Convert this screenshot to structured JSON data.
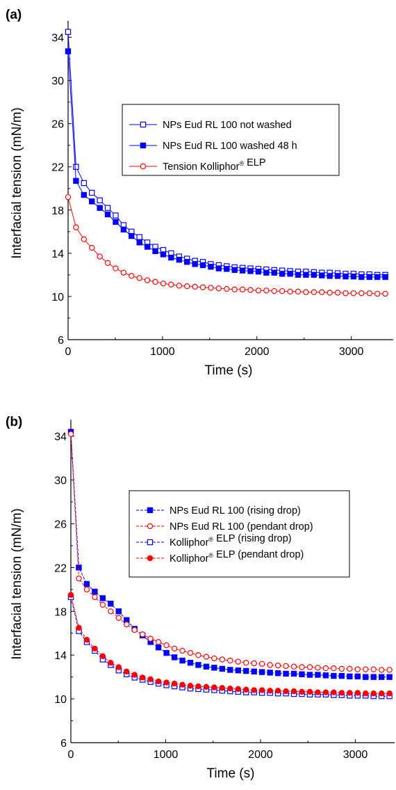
{
  "chart_data": [
    {
      "type": "line",
      "panel_label": "(a)",
      "xlabel": "Time (s)",
      "ylabel": "Interfacial tension (mN/m)",
      "xlim": [
        0,
        3400
      ],
      "ylim": [
        6,
        35
      ],
      "xticks": [
        0,
        1000,
        2000,
        3000
      ],
      "yticks": [
        6,
        10,
        14,
        18,
        22,
        26,
        30,
        34
      ],
      "grid": false,
      "legend_placement": "right-center",
      "series": [
        {
          "name": "NPs Eud RL 100 not washed",
          "color": "#0000ff",
          "marker": "square-open",
          "line": "solid",
          "x": [
            0,
            84,
            168,
            252,
            336,
            420,
            504,
            588,
            672,
            756,
            840,
            924,
            1008,
            1092,
            1176,
            1260,
            1344,
            1428,
            1512,
            1596,
            1680,
            1764,
            1848,
            1932,
            2016,
            2100,
            2184,
            2268,
            2352,
            2436,
            2520,
            2604,
            2688,
            2772,
            2856,
            2940,
            3024,
            3108,
            3192,
            3276,
            3360
          ],
          "y": [
            34.5,
            22.0,
            20.5,
            19.6,
            18.9,
            18.2,
            17.5,
            16.6,
            16.0,
            15.5,
            15.0,
            14.6,
            14.3,
            14.0,
            13.7,
            13.5,
            13.3,
            13.2,
            13.0,
            12.9,
            12.8,
            12.7,
            12.65,
            12.6,
            12.55,
            12.5,
            12.45,
            12.4,
            12.35,
            12.3,
            12.3,
            12.25,
            12.2,
            12.2,
            12.15,
            12.1,
            12.1,
            12.05,
            12.05,
            12.0,
            12.0
          ]
        },
        {
          "name": "NPs Eud RL 100 washed 48 h",
          "color": "#0000ff",
          "marker": "square-filled",
          "line": "solid",
          "x": [
            0,
            84,
            168,
            252,
            336,
            420,
            504,
            588,
            672,
            756,
            840,
            924,
            1008,
            1092,
            1176,
            1260,
            1344,
            1428,
            1512,
            1596,
            1680,
            1764,
            1848,
            1932,
            2016,
            2100,
            2184,
            2268,
            2352,
            2436,
            2520,
            2604,
            2688,
            2772,
            2856,
            2940,
            3024,
            3108,
            3192,
            3276,
            3360
          ],
          "y": [
            32.7,
            20.7,
            19.4,
            18.8,
            18.2,
            17.6,
            16.9,
            16.2,
            15.6,
            15.0,
            14.6,
            14.2,
            13.9,
            13.6,
            13.4,
            13.2,
            13.0,
            12.9,
            12.75,
            12.6,
            12.55,
            12.45,
            12.4,
            12.35,
            12.3,
            12.2,
            12.2,
            12.1,
            12.1,
            12.0,
            12.0,
            12.0,
            11.95,
            11.9,
            11.9,
            11.85,
            11.85,
            11.8,
            11.8,
            11.8,
            11.8
          ]
        },
        {
          "name": "Tension Kolliphor® ELP",
          "color": "#ff0000",
          "marker": "circle-open",
          "line": "solid",
          "x": [
            0,
            84,
            168,
            252,
            336,
            420,
            504,
            588,
            672,
            756,
            840,
            924,
            1008,
            1092,
            1176,
            1260,
            1344,
            1428,
            1512,
            1596,
            1680,
            1764,
            1848,
            1932,
            2016,
            2100,
            2184,
            2268,
            2352,
            2436,
            2520,
            2604,
            2688,
            2772,
            2856,
            2940,
            3024,
            3108,
            3192,
            3276,
            3360
          ],
          "y": [
            19.2,
            16.4,
            15.3,
            14.5,
            13.7,
            13.1,
            12.6,
            12.2,
            11.9,
            11.7,
            11.5,
            11.35,
            11.2,
            11.1,
            11.0,
            10.95,
            10.9,
            10.85,
            10.8,
            10.75,
            10.7,
            10.65,
            10.65,
            10.6,
            10.55,
            10.55,
            10.5,
            10.5,
            10.45,
            10.45,
            10.4,
            10.4,
            10.4,
            10.35,
            10.35,
            10.3,
            10.3,
            10.3,
            10.3,
            10.25,
            10.25
          ]
        }
      ]
    },
    {
      "type": "line",
      "panel_label": "(b)",
      "xlabel": "Time (s)",
      "ylabel": "Interfacial tension (mN/m)",
      "xlim": [
        0,
        3370
      ],
      "ylim": [
        6,
        35
      ],
      "xticks": [
        0,
        1000,
        2000,
        3000
      ],
      "yticks": [
        6,
        10,
        14,
        18,
        22,
        26,
        30,
        34
      ],
      "grid": false,
      "legend_placement": "right-center",
      "series": [
        {
          "name": "NPs Eud RL 100 (rising drop)",
          "color": "#0000ff",
          "marker": "square-filled",
          "line": "dashed",
          "x": [
            0,
            84,
            168,
            252,
            336,
            420,
            504,
            588,
            672,
            756,
            840,
            924,
            1008,
            1092,
            1176,
            1260,
            1344,
            1428,
            1512,
            1596,
            1680,
            1764,
            1848,
            1932,
            2016,
            2100,
            2184,
            2268,
            2352,
            2436,
            2520,
            2604,
            2688,
            2772,
            2856,
            2940,
            3024,
            3108,
            3192,
            3276,
            3360
          ],
          "y": [
            34.4,
            22.0,
            20.5,
            19.8,
            19.2,
            18.7,
            18.0,
            17.2,
            16.4,
            15.8,
            15.2,
            14.7,
            14.2,
            13.8,
            13.5,
            13.3,
            13.1,
            12.95,
            12.85,
            12.75,
            12.65,
            12.6,
            12.55,
            12.5,
            12.45,
            12.4,
            12.35,
            12.3,
            12.3,
            12.25,
            12.2,
            12.2,
            12.15,
            12.1,
            12.1,
            12.05,
            12.05,
            12.0,
            12.0,
            12.0,
            12.0
          ]
        },
        {
          "name": "NPs Eud RL 100 (pendant drop)",
          "color": "#ff0000",
          "marker": "circle-open",
          "line": "dashed",
          "x": [
            0,
            84,
            168,
            252,
            336,
            420,
            504,
            588,
            672,
            756,
            840,
            924,
            1008,
            1092,
            1176,
            1260,
            1344,
            1428,
            1512,
            1596,
            1680,
            1764,
            1848,
            1932,
            2016,
            2100,
            2184,
            2268,
            2352,
            2436,
            2520,
            2604,
            2688,
            2772,
            2856,
            2940,
            3024,
            3108,
            3192,
            3276,
            3360
          ],
          "y": [
            34.2,
            21.0,
            20.0,
            19.3,
            18.6,
            18.0,
            17.4,
            16.8,
            16.3,
            15.9,
            15.5,
            15.2,
            14.9,
            14.6,
            14.4,
            14.2,
            14.0,
            13.85,
            13.7,
            13.6,
            13.5,
            13.4,
            13.3,
            13.25,
            13.2,
            13.1,
            13.05,
            13.0,
            12.95,
            12.9,
            12.9,
            12.85,
            12.8,
            12.8,
            12.75,
            12.75,
            12.7,
            12.7,
            12.7,
            12.65,
            12.65
          ]
        },
        {
          "name": "Kolliphor® ELP (rising drop)",
          "color": "#0000ff",
          "marker": "square-open",
          "line": "dashed",
          "x": [
            0,
            84,
            168,
            252,
            336,
            420,
            504,
            588,
            672,
            756,
            840,
            924,
            1008,
            1092,
            1176,
            1260,
            1344,
            1428,
            1512,
            1596,
            1680,
            1764,
            1848,
            1932,
            2016,
            2100,
            2184,
            2268,
            2352,
            2436,
            2520,
            2604,
            2688,
            2772,
            2856,
            2940,
            3024,
            3108,
            3192,
            3276,
            3360
          ],
          "y": [
            19.3,
            16.2,
            15.2,
            14.4,
            13.6,
            13.1,
            12.6,
            12.25,
            11.95,
            11.75,
            11.55,
            11.4,
            11.25,
            11.15,
            11.05,
            10.95,
            10.9,
            10.85,
            10.8,
            10.75,
            10.7,
            10.65,
            10.6,
            10.6,
            10.55,
            10.55,
            10.5,
            10.5,
            10.45,
            10.45,
            10.4,
            10.4,
            10.4,
            10.35,
            10.35,
            10.3,
            10.3,
            10.3,
            10.25,
            10.25,
            10.25
          ]
        },
        {
          "name": "Kolliphor® ELP (pendant drop)",
          "color": "#ff0000",
          "marker": "circle-filled",
          "line": "dashed",
          "x": [
            0,
            84,
            168,
            252,
            336,
            420,
            504,
            588,
            672,
            756,
            840,
            924,
            1008,
            1092,
            1176,
            1260,
            1344,
            1428,
            1512,
            1596,
            1680,
            1764,
            1848,
            1932,
            2016,
            2100,
            2184,
            2268,
            2352,
            2436,
            2520,
            2604,
            2688,
            2772,
            2856,
            2940,
            3024,
            3108,
            3192,
            3276,
            3360
          ],
          "y": [
            19.5,
            16.5,
            15.4,
            14.6,
            13.9,
            13.3,
            12.9,
            12.5,
            12.2,
            11.95,
            11.8,
            11.6,
            11.5,
            11.4,
            11.3,
            11.2,
            11.15,
            11.1,
            11.05,
            11.0,
            10.95,
            10.9,
            10.85,
            10.8,
            10.8,
            10.75,
            10.75,
            10.7,
            10.7,
            10.65,
            10.65,
            10.6,
            10.6,
            10.6,
            10.55,
            10.55,
            10.55,
            10.5,
            10.5,
            10.5,
            10.5
          ]
        }
      ]
    }
  ]
}
